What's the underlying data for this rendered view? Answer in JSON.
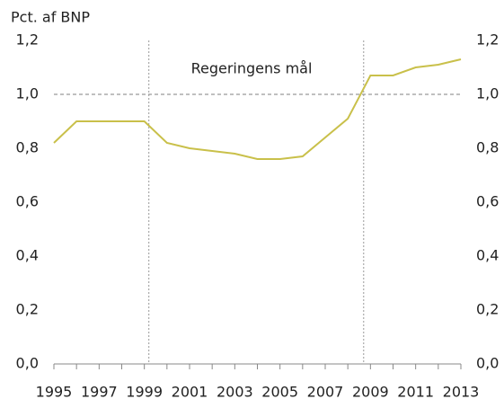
{
  "chart_data": {
    "type": "line",
    "ylabel": "Pct. af BNP",
    "x": [
      1995,
      1996,
      1997,
      1998,
      1999,
      2000,
      2001,
      2002,
      2003,
      2004,
      2005,
      2006,
      2007,
      2008,
      2009,
      2010,
      2011,
      2012,
      2013
    ],
    "series": [
      {
        "color": "#c9c04a",
        "values": [
          0.82,
          0.9,
          0.9,
          0.9,
          0.9,
          0.82,
          0.8,
          0.79,
          0.78,
          0.76,
          0.76,
          0.77,
          0.84,
          0.91,
          1.07,
          1.07,
          1.1,
          1.11,
          1.13
        ]
      }
    ],
    "xlim": [
      1995,
      2013
    ],
    "xticks": [
      1995,
      1997,
      1999,
      2001,
      2003,
      2005,
      2007,
      2009,
      2011,
      2013
    ],
    "ylim": [
      0,
      1.2
    ],
    "yticks": [
      {
        "value": 0,
        "label": "0,0"
      },
      {
        "value": 0.2,
        "label": "0,2"
      },
      {
        "value": 0.4,
        "label": "0,4"
      },
      {
        "value": 0.6,
        "label": "0,6"
      },
      {
        "value": 0.8,
        "label": "0,8"
      },
      {
        "value": 1.0,
        "label": "1,0"
      },
      {
        "value": 1.2,
        "label": "1,2"
      }
    ],
    "hline": {
      "value": 1.0,
      "label": "Regeringens mål",
      "color": "#999999"
    },
    "vlines": [
      1999.2,
      2008.7
    ]
  }
}
